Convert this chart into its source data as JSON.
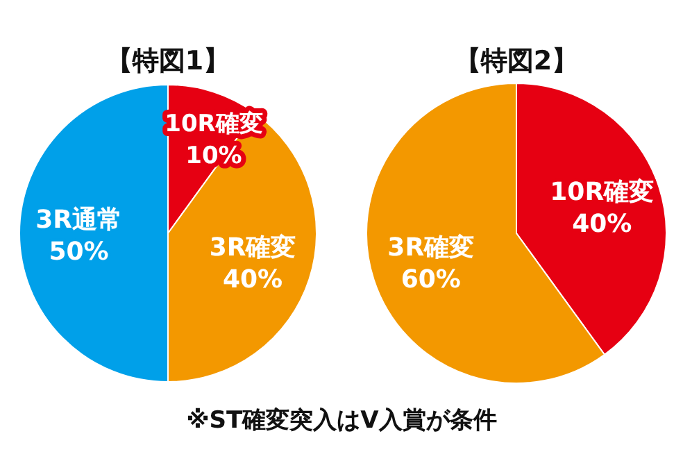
{
  "chart_data": [
    {
      "type": "pie",
      "title": "【特図1】",
      "categories": [
        "10R確変",
        "3R確変",
        "3R通常"
      ],
      "values": [
        10,
        40,
        50
      ],
      "value_labels": [
        "10%",
        "40%",
        "50%"
      ],
      "colors": [
        "#e60012",
        "#f39800",
        "#00a0e9"
      ]
    },
    {
      "type": "pie",
      "title": "【特図2】",
      "categories": [
        "10R確変",
        "3R確変"
      ],
      "values": [
        40,
        60
      ],
      "value_labels": [
        "40%",
        "60%"
      ],
      "colors": [
        "#e60012",
        "#f39800"
      ],
      "annotations": [
        "※ST確変突入はV入賞が条件"
      ]
    }
  ]
}
